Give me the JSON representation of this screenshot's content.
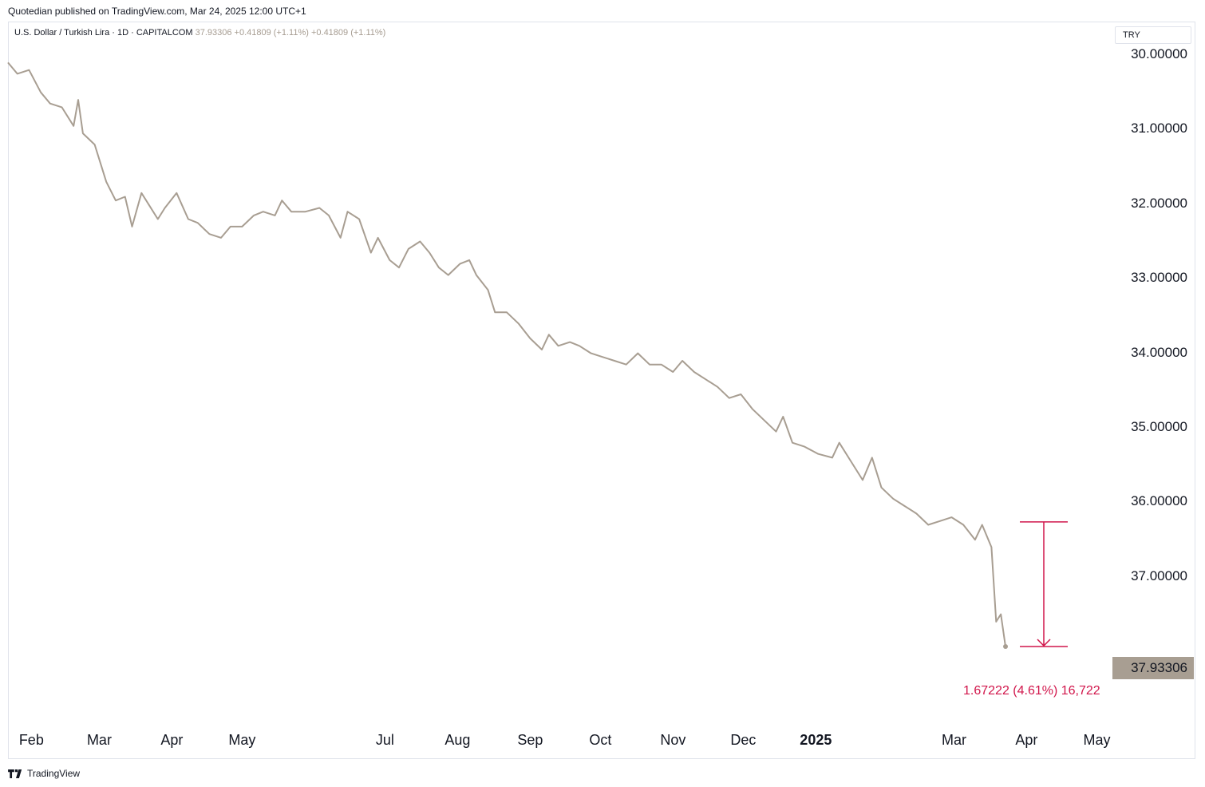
{
  "header": {
    "published": "Quotedian published on TradingView.com, Mar 24, 2025 12:00 UTC+1"
  },
  "legend": {
    "symbol": "U.S. Dollar / Turkish Lira · 1D · CAPITALCOM",
    "last": "37.93306",
    "change1": "+0.41809 (+1.11%)",
    "change2": "+0.41809 (+1.11%)"
  },
  "scale": {
    "currency": "TRY"
  },
  "price_tag": "37.93306",
  "measure": {
    "label": "1.67222 (4.61%) 16,722"
  },
  "footer": {
    "brand": "TradingView",
    "icon": "tradingview-logo-icon"
  },
  "colors": {
    "line": "#a89e92",
    "measure": "#d1164b",
    "background": "#ffffff"
  },
  "chart_data": {
    "type": "line",
    "title": "U.S. Dollar / Turkish Lira · 1D · CAPITALCOM",
    "xlabel": "",
    "ylabel": "",
    "y_axis_inverted": true,
    "ylim": [
      29.55,
      38.95
    ],
    "y_ticks": [
      "30.00000",
      "31.00000",
      "32.00000",
      "33.00000",
      "34.00000",
      "35.00000",
      "36.00000",
      "37.00000"
    ],
    "y_tick_values": [
      30,
      31,
      32,
      33,
      34,
      35,
      36,
      37
    ],
    "x_ticks": [
      {
        "label": "Feb",
        "date": "2024-02-01"
      },
      {
        "label": "Mar",
        "date": "2024-03-01"
      },
      {
        "label": "Apr",
        "date": "2024-04-01"
      },
      {
        "label": "May",
        "date": "2024-05-01"
      },
      {
        "label": "Jul",
        "date": "2024-07-01"
      },
      {
        "label": "Aug",
        "date": "2024-08-01"
      },
      {
        "label": "Sep",
        "date": "2024-09-01"
      },
      {
        "label": "Oct",
        "date": "2024-10-01"
      },
      {
        "label": "Nov",
        "date": "2024-11-01"
      },
      {
        "label": "Dec",
        "date": "2024-12-01"
      },
      {
        "label": "2025",
        "date": "2025-01-01",
        "bold": true
      },
      {
        "label": "Mar",
        "date": "2025-03-01"
      },
      {
        "label": "Apr",
        "date": "2025-04-01"
      },
      {
        "label": "May",
        "date": "2025-05-01"
      }
    ],
    "xlim": [
      "2024-01-22",
      "2025-05-08"
    ],
    "grid": false,
    "series": [
      {
        "color": "#a89e92",
        "points": [
          [
            "2024-01-22",
            30.1
          ],
          [
            "2024-01-26",
            30.25
          ],
          [
            "2024-01-31",
            30.2
          ],
          [
            "2024-02-05",
            30.5
          ],
          [
            "2024-02-09",
            30.65
          ],
          [
            "2024-02-14",
            30.7
          ],
          [
            "2024-02-19",
            30.95
          ],
          [
            "2024-02-21",
            30.6
          ],
          [
            "2024-02-23",
            31.05
          ],
          [
            "2024-02-28",
            31.2
          ],
          [
            "2024-03-04",
            31.7
          ],
          [
            "2024-03-08",
            31.95
          ],
          [
            "2024-03-12",
            31.9
          ],
          [
            "2024-03-15",
            32.3
          ],
          [
            "2024-03-19",
            31.85
          ],
          [
            "2024-03-22",
            32.0
          ],
          [
            "2024-03-26",
            32.2
          ],
          [
            "2024-03-29",
            32.05
          ],
          [
            "2024-04-03",
            31.85
          ],
          [
            "2024-04-08",
            32.2
          ],
          [
            "2024-04-12",
            32.25
          ],
          [
            "2024-04-17",
            32.4
          ],
          [
            "2024-04-22",
            32.45
          ],
          [
            "2024-04-26",
            32.3
          ],
          [
            "2024-05-01",
            32.3
          ],
          [
            "2024-05-06",
            32.15
          ],
          [
            "2024-05-10",
            32.1
          ],
          [
            "2024-05-15",
            32.15
          ],
          [
            "2024-05-18",
            31.95
          ],
          [
            "2024-05-22",
            32.1
          ],
          [
            "2024-05-28",
            32.1
          ],
          [
            "2024-06-03",
            32.05
          ],
          [
            "2024-06-07",
            32.15
          ],
          [
            "2024-06-12",
            32.45
          ],
          [
            "2024-06-15",
            32.1
          ],
          [
            "2024-06-20",
            32.2
          ],
          [
            "2024-06-25",
            32.65
          ],
          [
            "2024-06-28",
            32.45
          ],
          [
            "2024-07-03",
            32.75
          ],
          [
            "2024-07-07",
            32.85
          ],
          [
            "2024-07-11",
            32.6
          ],
          [
            "2024-07-16",
            32.5
          ],
          [
            "2024-07-20",
            32.65
          ],
          [
            "2024-07-24",
            32.85
          ],
          [
            "2024-07-28",
            32.95
          ],
          [
            "2024-08-02",
            32.8
          ],
          [
            "2024-08-06",
            32.75
          ],
          [
            "2024-08-09",
            32.95
          ],
          [
            "2024-08-14",
            33.15
          ],
          [
            "2024-08-17",
            33.45
          ],
          [
            "2024-08-22",
            33.45
          ],
          [
            "2024-08-27",
            33.6
          ],
          [
            "2024-09-01",
            33.8
          ],
          [
            "2024-09-06",
            33.95
          ],
          [
            "2024-09-09",
            33.75
          ],
          [
            "2024-09-13",
            33.9
          ],
          [
            "2024-09-18",
            33.85
          ],
          [
            "2024-09-22",
            33.9
          ],
          [
            "2024-09-27",
            34.0
          ],
          [
            "2024-10-02",
            34.05
          ],
          [
            "2024-10-07",
            34.1
          ],
          [
            "2024-10-12",
            34.15
          ],
          [
            "2024-10-17",
            34.0
          ],
          [
            "2024-10-22",
            34.15
          ],
          [
            "2024-10-27",
            34.15
          ],
          [
            "2024-11-01",
            34.25
          ],
          [
            "2024-11-05",
            34.1
          ],
          [
            "2024-11-10",
            34.25
          ],
          [
            "2024-11-15",
            34.35
          ],
          [
            "2024-11-20",
            34.45
          ],
          [
            "2024-11-25",
            34.6
          ],
          [
            "2024-11-30",
            34.55
          ],
          [
            "2024-12-05",
            34.75
          ],
          [
            "2024-12-10",
            34.9
          ],
          [
            "2024-12-15",
            35.05
          ],
          [
            "2024-12-18",
            34.85
          ],
          [
            "2024-12-22",
            35.2
          ],
          [
            "2024-12-27",
            35.25
          ],
          [
            "2025-01-02",
            35.35
          ],
          [
            "2025-01-08",
            35.4
          ],
          [
            "2025-01-11",
            35.2
          ],
          [
            "2025-01-16",
            35.45
          ],
          [
            "2025-01-21",
            35.7
          ],
          [
            "2025-01-25",
            35.4
          ],
          [
            "2025-01-29",
            35.8
          ],
          [
            "2025-02-03",
            35.95
          ],
          [
            "2025-02-08",
            36.05
          ],
          [
            "2025-02-13",
            36.15
          ],
          [
            "2025-02-18",
            36.3
          ],
          [
            "2025-02-23",
            36.25
          ],
          [
            "2025-02-28",
            36.2
          ],
          [
            "2025-03-05",
            36.3
          ],
          [
            "2025-03-10",
            36.5
          ],
          [
            "2025-03-13",
            36.3
          ],
          [
            "2025-03-17",
            36.6
          ],
          [
            "2025-03-19",
            37.6
          ],
          [
            "2025-03-20",
            37.55
          ],
          [
            "2025-03-21",
            37.5
          ],
          [
            "2025-03-23",
            37.93306
          ]
        ]
      }
    ],
    "last_value": 37.93306,
    "measure": {
      "from_value": 36.26084,
      "to_value": 37.93306,
      "change": 1.67222,
      "change_pct": 4.61,
      "text": "1.67222 (4.61%) 16,722"
    }
  }
}
